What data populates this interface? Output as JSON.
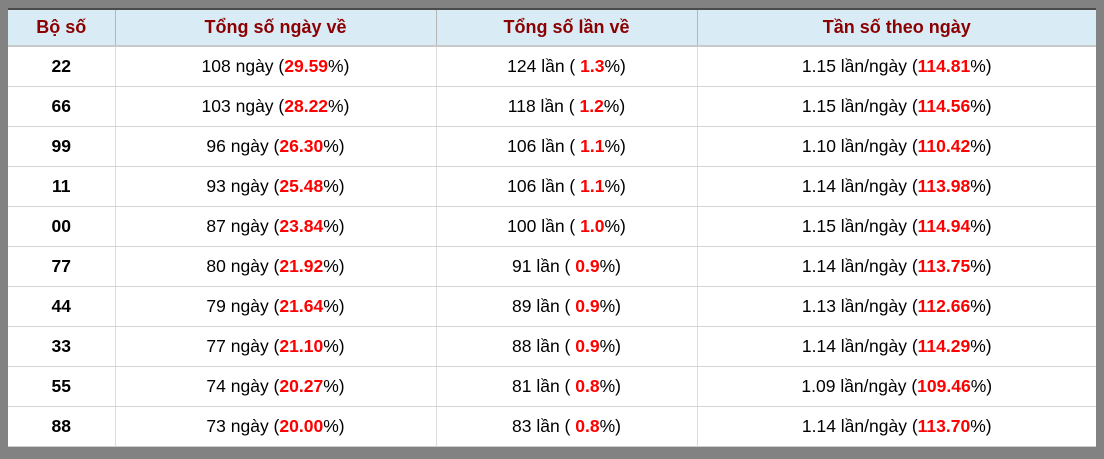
{
  "table": {
    "headers": [
      {
        "label": "Bộ số"
      },
      {
        "label": "Tổng số ngày về"
      },
      {
        "label": "Tổng số lần về"
      },
      {
        "label": "Tần số theo ngày"
      }
    ],
    "pct_suffix": "%)",
    "rows": [
      {
        "set": "22",
        "days_pre": "108 ngày (",
        "days_pct": "29.59",
        "times_pre": "124 lần ( ",
        "times_pct": "1.3",
        "freq_pre": "1.15 lần/ngày (",
        "freq_pct": "114.81"
      },
      {
        "set": "66",
        "days_pre": "103 ngày (",
        "days_pct": "28.22",
        "times_pre": "118 lần ( ",
        "times_pct": "1.2",
        "freq_pre": "1.15 lần/ngày (",
        "freq_pct": "114.56"
      },
      {
        "set": "99",
        "days_pre": "96 ngày (",
        "days_pct": "26.30",
        "times_pre": "106 lần ( ",
        "times_pct": "1.1",
        "freq_pre": "1.10 lần/ngày (",
        "freq_pct": "110.42"
      },
      {
        "set": "11",
        "days_pre": "93 ngày (",
        "days_pct": "25.48",
        "times_pre": "106 lần ( ",
        "times_pct": "1.1",
        "freq_pre": "1.14 lần/ngày (",
        "freq_pct": "113.98"
      },
      {
        "set": "00",
        "days_pre": "87 ngày (",
        "days_pct": "23.84",
        "times_pre": "100 lần ( ",
        "times_pct": "1.0",
        "freq_pre": "1.15 lần/ngày (",
        "freq_pct": "114.94"
      },
      {
        "set": "77",
        "days_pre": "80 ngày (",
        "days_pct": "21.92",
        "times_pre": "91 lần ( ",
        "times_pct": "0.9",
        "freq_pre": "1.14 lần/ngày (",
        "freq_pct": "113.75"
      },
      {
        "set": "44",
        "days_pre": "79 ngày (",
        "days_pct": "21.64",
        "times_pre": "89 lần ( ",
        "times_pct": "0.9",
        "freq_pre": "1.13 lần/ngày (",
        "freq_pct": "112.66"
      },
      {
        "set": "33",
        "days_pre": "77 ngày (",
        "days_pct": "21.10",
        "times_pre": "88 lần ( ",
        "times_pct": "0.9",
        "freq_pre": "1.14 lần/ngày (",
        "freq_pct": "114.29"
      },
      {
        "set": "55",
        "days_pre": "74 ngày (",
        "days_pct": "20.27",
        "times_pre": "81 lần ( ",
        "times_pct": "0.8",
        "freq_pre": "1.09 lần/ngày (",
        "freq_pct": "109.46"
      },
      {
        "set": "88",
        "days_pre": "73 ngày (",
        "days_pct": "20.00",
        "times_pre": "83 lần ( ",
        "times_pct": "0.8",
        "freq_pre": "1.14 lần/ngày (",
        "freq_pct": "113.70"
      }
    ]
  },
  "colors": {
    "frame": "#828282",
    "header_bg": "#d9ecf6",
    "header_text": "#8b0000",
    "percent": "#ff0000"
  }
}
